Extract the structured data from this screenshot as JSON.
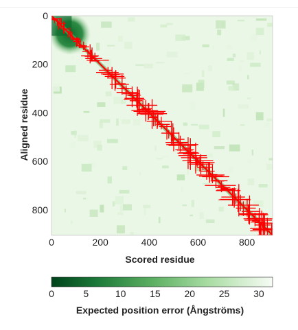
{
  "chart_data": [
    {
      "type": "heatmap",
      "xlabel": "Scored residue",
      "ylabel": "Aligned residue",
      "xlim": [
        0,
        905
      ],
      "ylim": [
        905,
        0
      ],
      "x_ticks": [
        "0",
        "200",
        "400",
        "600",
        "800"
      ],
      "y_ticks": [
        "0",
        "200",
        "400",
        "600",
        "800"
      ],
      "colorscale": {
        "low": "#00441b",
        "mid": "#74c476",
        "high": "#f7fcf5",
        "min": 0,
        "max": 32
      },
      "overlay_color": "#ff0000",
      "low_error_block": {
        "residues": [
          0,
          150
        ]
      }
    },
    {
      "type": "colorbar",
      "label": "Expected position error (Ångströms)",
      "ticks": [
        "0",
        "5",
        "10",
        "15",
        "20",
        "25",
        "30"
      ],
      "range": [
        0,
        32
      ]
    }
  ]
}
